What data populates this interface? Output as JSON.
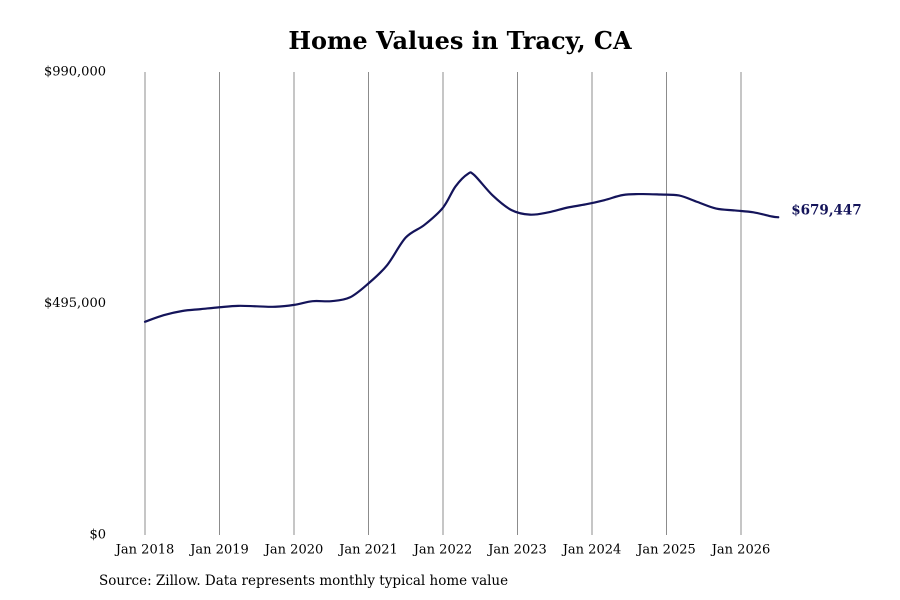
{
  "chart_data": {
    "type": "line",
    "title": "Home Values in Tracy, CA",
    "xlabel": "",
    "ylabel": "",
    "ylim": [
      0,
      990000
    ],
    "y_ticks": [
      {
        "value": 0,
        "label": "$0"
      },
      {
        "value": 495000,
        "label": "$495,000"
      },
      {
        "value": 990000,
        "label": "$990,000"
      }
    ],
    "x_ticks": [
      {
        "value": "2018-01",
        "label": "Jan 2018"
      },
      {
        "value": "2019-01",
        "label": "Jan 2019"
      },
      {
        "value": "2020-01",
        "label": "Jan 2020"
      },
      {
        "value": "2021-01",
        "label": "Jan 2021"
      },
      {
        "value": "2022-01",
        "label": "Jan 2022"
      },
      {
        "value": "2023-01",
        "label": "Jan 2023"
      },
      {
        "value": "2024-01",
        "label": "Jan 2024"
      },
      {
        "value": "2025-01",
        "label": "Jan 2025"
      },
      {
        "value": "2026-01",
        "label": "Jan 2026"
      }
    ],
    "vertical_gridlines": true,
    "horizontal_gridlines": false,
    "series": [
      {
        "color": "#14145a",
        "points": [
          {
            "x": "2018-01",
            "y": 456000
          },
          {
            "x": "2018-04",
            "y": 470000
          },
          {
            "x": "2018-07",
            "y": 479000
          },
          {
            "x": "2018-10",
            "y": 483000
          },
          {
            "x": "2019-01",
            "y": 487000
          },
          {
            "x": "2019-04",
            "y": 490000
          },
          {
            "x": "2019-07",
            "y": 489000
          },
          {
            "x": "2019-10",
            "y": 488000
          },
          {
            "x": "2020-01",
            "y": 492000
          },
          {
            "x": "2020-04",
            "y": 500000
          },
          {
            "x": "2020-07",
            "y": 500000
          },
          {
            "x": "2020-10",
            "y": 508000
          },
          {
            "x": "2021-01",
            "y": 538000
          },
          {
            "x": "2021-04",
            "y": 577000
          },
          {
            "x": "2021-07",
            "y": 636000
          },
          {
            "x": "2021-10",
            "y": 663000
          },
          {
            "x": "2022-01",
            "y": 700000
          },
          {
            "x": "2022-03",
            "y": 745000
          },
          {
            "x": "2022-05",
            "y": 772000
          },
          {
            "x": "2022-06",
            "y": 770000
          },
          {
            "x": "2022-09",
            "y": 726000
          },
          {
            "x": "2022-12",
            "y": 695000
          },
          {
            "x": "2023-03",
            "y": 685000
          },
          {
            "x": "2023-06",
            "y": 690000
          },
          {
            "x": "2023-09",
            "y": 700000
          },
          {
            "x": "2023-12",
            "y": 707000
          },
          {
            "x": "2024-03",
            "y": 716000
          },
          {
            "x": "2024-06",
            "y": 727000
          },
          {
            "x": "2024-09",
            "y": 729000
          },
          {
            "x": "2024-12",
            "y": 728000
          },
          {
            "x": "2025-03",
            "y": 726000
          },
          {
            "x": "2025-06",
            "y": 712000
          },
          {
            "x": "2025-09",
            "y": 698000
          },
          {
            "x": "2025-12",
            "y": 694000
          },
          {
            "x": "2026-03",
            "y": 690000
          },
          {
            "x": "2026-06",
            "y": 681000
          },
          {
            "x": "2026-07",
            "y": 679447
          }
        ],
        "end_label": "$679,447"
      }
    ]
  },
  "source_note": "Source: Zillow. Data represents monthly typical home value"
}
